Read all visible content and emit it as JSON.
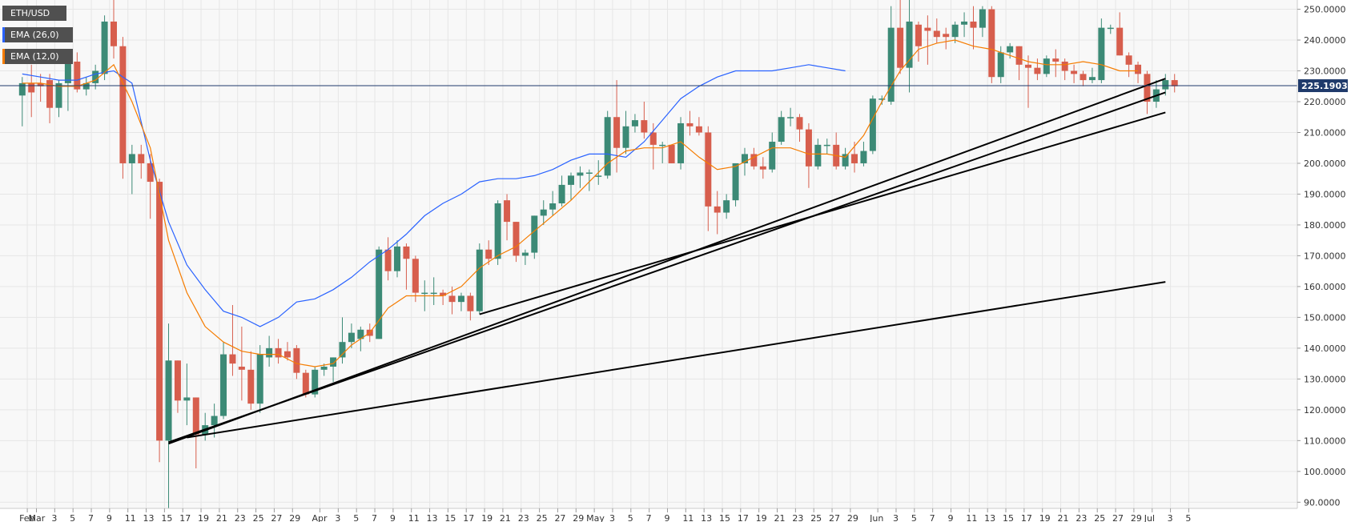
{
  "chart_data": {
    "type": "candlestick",
    "symbol": "ETH/USD",
    "indicators": [
      {
        "name": "EMA (26,0)",
        "color": "#2962ff"
      },
      {
        "name": "EMA (12,0)",
        "color": "#f57c00"
      }
    ],
    "current_price_label": "225.19035",
    "current_price": 225.19,
    "ylim": [
      88,
      253
    ],
    "y_ticks": [
      "90.0000",
      "100.0000",
      "110.0000",
      "120.0000",
      "130.0000",
      "140.0000",
      "150.0000",
      "160.0000",
      "170.0000",
      "180.0000",
      "190.0000",
      "200.0000",
      "210.0000",
      "220.0000",
      "230.0000",
      "240.0000",
      "250.0000"
    ],
    "x_ticks": [
      "Feb",
      "Mar",
      "3",
      "5",
      "7",
      "9",
      "11",
      "13",
      "15",
      "17",
      "19",
      "21",
      "23",
      "25",
      "27",
      "29",
      "Apr",
      "3",
      "5",
      "7",
      "9",
      "11",
      "13",
      "15",
      "17",
      "19",
      "21",
      "23",
      "25",
      "27",
      "29",
      "May",
      "3",
      "5",
      "7",
      "9",
      "11",
      "13",
      "15",
      "17",
      "19",
      "21",
      "23",
      "25",
      "27",
      "29",
      "Jun",
      "3",
      "5",
      "7",
      "9",
      "11",
      "13",
      "15",
      "17",
      "19",
      "21",
      "23",
      "25",
      "27",
      "29",
      "Jul",
      "3",
      "5"
    ],
    "x_tick_days": [
      -1,
      0,
      2,
      4,
      6,
      8,
      10,
      12,
      14,
      16,
      18,
      20,
      22,
      24,
      26,
      28,
      31,
      33,
      35,
      37,
      39,
      41,
      43,
      45,
      47,
      49,
      51,
      53,
      55,
      57,
      59,
      61,
      63,
      65,
      67,
      69,
      71,
      73,
      75,
      77,
      79,
      81,
      83,
      85,
      87,
      89,
      92,
      94,
      96,
      98,
      100,
      102,
      104,
      106,
      108,
      110,
      112,
      114,
      116,
      118,
      120,
      122,
      124,
      126
    ],
    "candles": [
      {
        "o": 222,
        "h": 228,
        "l": 212,
        "c": 226
      },
      {
        "o": 226,
        "h": 232,
        "l": 215,
        "c": 223
      },
      {
        "o": 226,
        "h": 229,
        "l": 220,
        "c": 225
      },
      {
        "o": 227,
        "h": 229,
        "l": 213,
        "c": 218
      },
      {
        "o": 218,
        "h": 227,
        "l": 215,
        "c": 226
      },
      {
        "o": 226,
        "h": 235,
        "l": 217,
        "c": 233
      },
      {
        "o": 233,
        "h": 236,
        "l": 223,
        "c": 224
      },
      {
        "o": 224,
        "h": 228,
        "l": 222,
        "c": 226
      },
      {
        "o": 226,
        "h": 232,
        "l": 224,
        "c": 230
      },
      {
        "o": 229,
        "h": 248,
        "l": 227,
        "c": 246
      },
      {
        "o": 246,
        "h": 253,
        "l": 234,
        "c": 238
      },
      {
        "o": 238,
        "h": 241,
        "l": 195,
        "c": 200
      },
      {
        "o": 200,
        "h": 206,
        "l": 190,
        "c": 203
      },
      {
        "o": 203,
        "h": 206,
        "l": 195,
        "c": 200
      },
      {
        "o": 200,
        "h": 203,
        "l": 182,
        "c": 194
      },
      {
        "o": 194,
        "h": 195,
        "l": 103,
        "c": 110
      },
      {
        "o": 110,
        "h": 148,
        "l": 88,
        "c": 136
      },
      {
        "o": 136,
        "h": 136,
        "l": 119,
        "c": 123
      },
      {
        "o": 123,
        "h": 135,
        "l": 115,
        "c": 124
      },
      {
        "o": 124,
        "h": 124,
        "l": 101,
        "c": 112
      },
      {
        "o": 112,
        "h": 119,
        "l": 110,
        "c": 115
      },
      {
        "o": 115,
        "h": 122,
        "l": 111,
        "c": 118
      },
      {
        "o": 118,
        "h": 142,
        "l": 117,
        "c": 138
      },
      {
        "o": 138,
        "h": 154,
        "l": 131,
        "c": 135
      },
      {
        "o": 134,
        "h": 147,
        "l": 123,
        "c": 133
      },
      {
        "o": 133,
        "h": 139,
        "l": 120,
        "c": 122
      },
      {
        "o": 122,
        "h": 141,
        "l": 119,
        "c": 138
      },
      {
        "o": 137,
        "h": 144,
        "l": 134,
        "c": 140
      },
      {
        "o": 140,
        "h": 143,
        "l": 135,
        "c": 137
      },
      {
        "o": 139,
        "h": 142,
        "l": 136,
        "c": 137
      },
      {
        "o": 140,
        "h": 141,
        "l": 130,
        "c": 132
      },
      {
        "o": 132,
        "h": 133,
        "l": 124,
        "c": 125
      },
      {
        "o": 125,
        "h": 134,
        "l": 124,
        "c": 133
      },
      {
        "o": 133,
        "h": 135,
        "l": 131,
        "c": 134
      },
      {
        "o": 134,
        "h": 137,
        "l": 129,
        "c": 137
      },
      {
        "o": 137,
        "h": 150,
        "l": 135,
        "c": 142
      },
      {
        "o": 142,
        "h": 148,
        "l": 140,
        "c": 145
      },
      {
        "o": 143,
        "h": 147,
        "l": 139,
        "c": 146
      },
      {
        "o": 146,
        "h": 148,
        "l": 142,
        "c": 144
      },
      {
        "o": 143,
        "h": 173,
        "l": 143,
        "c": 172
      },
      {
        "o": 172,
        "h": 176,
        "l": 162,
        "c": 165
      },
      {
        "o": 165,
        "h": 175,
        "l": 163,
        "c": 173
      },
      {
        "o": 173,
        "h": 174,
        "l": 159,
        "c": 169
      },
      {
        "o": 169,
        "h": 170,
        "l": 155,
        "c": 158
      },
      {
        "o": 158,
        "h": 162,
        "l": 152,
        "c": 158
      },
      {
        "o": 158,
        "h": 163,
        "l": 154,
        "c": 158
      },
      {
        "o": 158,
        "h": 159,
        "l": 154,
        "c": 157
      },
      {
        "o": 157,
        "h": 160,
        "l": 151,
        "c": 155
      },
      {
        "o": 155,
        "h": 158,
        "l": 152,
        "c": 157
      },
      {
        "o": 157,
        "h": 158,
        "l": 149,
        "c": 152
      },
      {
        "o": 152,
        "h": 174,
        "l": 151,
        "c": 172
      },
      {
        "o": 172,
        "h": 175,
        "l": 167,
        "c": 169
      },
      {
        "o": 169,
        "h": 188,
        "l": 167,
        "c": 187
      },
      {
        "o": 188,
        "h": 190,
        "l": 175,
        "c": 181
      },
      {
        "o": 181,
        "h": 181,
        "l": 168,
        "c": 170
      },
      {
        "o": 170,
        "h": 172,
        "l": 167,
        "c": 171
      },
      {
        "o": 171,
        "h": 183,
        "l": 169,
        "c": 183
      },
      {
        "o": 183,
        "h": 188,
        "l": 180,
        "c": 185
      },
      {
        "o": 185,
        "h": 191,
        "l": 183,
        "c": 187
      },
      {
        "o": 187,
        "h": 196,
        "l": 186,
        "c": 193
      },
      {
        "o": 193,
        "h": 197,
        "l": 188,
        "c": 196
      },
      {
        "o": 196,
        "h": 199,
        "l": 192,
        "c": 197
      },
      {
        "o": 197,
        "h": 198,
        "l": 191,
        "c": 197
      },
      {
        "o": 196,
        "h": 201,
        "l": 193,
        "c": 196
      },
      {
        "o": 196,
        "h": 217,
        "l": 195,
        "c": 215
      },
      {
        "o": 215,
        "h": 227,
        "l": 197,
        "c": 205
      },
      {
        "o": 205,
        "h": 217,
        "l": 203,
        "c": 212
      },
      {
        "o": 212,
        "h": 216,
        "l": 210,
        "c": 214
      },
      {
        "o": 214,
        "h": 220,
        "l": 208,
        "c": 210
      },
      {
        "o": 210,
        "h": 213,
        "l": 198,
        "c": 206
      },
      {
        "o": 206,
        "h": 207,
        "l": 200,
        "c": 206
      },
      {
        "o": 206,
        "h": 206,
        "l": 200,
        "c": 200
      },
      {
        "o": 200,
        "h": 215,
        "l": 198,
        "c": 213
      },
      {
        "o": 213,
        "h": 217,
        "l": 209,
        "c": 212
      },
      {
        "o": 212,
        "h": 215,
        "l": 209,
        "c": 210
      },
      {
        "o": 210,
        "h": 212,
        "l": 178,
        "c": 186
      },
      {
        "o": 186,
        "h": 191,
        "l": 177,
        "c": 184
      },
      {
        "o": 184,
        "h": 190,
        "l": 182,
        "c": 188
      },
      {
        "o": 188,
        "h": 200,
        "l": 186,
        "c": 200
      },
      {
        "o": 200,
        "h": 205,
        "l": 196,
        "c": 203
      },
      {
        "o": 203,
        "h": 205,
        "l": 198,
        "c": 199
      },
      {
        "o": 199,
        "h": 202,
        "l": 195,
        "c": 198
      },
      {
        "o": 198,
        "h": 210,
        "l": 197,
        "c": 207
      },
      {
        "o": 207,
        "h": 217,
        "l": 206,
        "c": 215
      },
      {
        "o": 215,
        "h": 218,
        "l": 212,
        "c": 215
      },
      {
        "o": 215,
        "h": 216,
        "l": 207,
        "c": 211
      },
      {
        "o": 211,
        "h": 213,
        "l": 192,
        "c": 199
      },
      {
        "o": 199,
        "h": 208,
        "l": 198,
        "c": 206
      },
      {
        "o": 206,
        "h": 208,
        "l": 203,
        "c": 206
      },
      {
        "o": 206,
        "h": 210,
        "l": 198,
        "c": 199
      },
      {
        "o": 199,
        "h": 205,
        "l": 198,
        "c": 203
      },
      {
        "o": 203,
        "h": 207,
        "l": 197,
        "c": 200
      },
      {
        "o": 200,
        "h": 207,
        "l": 199,
        "c": 204
      },
      {
        "o": 204,
        "h": 222,
        "l": 203,
        "c": 221
      },
      {
        "o": 221,
        "h": 222,
        "l": 219,
        "c": 221
      },
      {
        "o": 220,
        "h": 251,
        "l": 219,
        "c": 244
      },
      {
        "o": 244,
        "h": 253,
        "l": 229,
        "c": 231
      },
      {
        "o": 231,
        "h": 253,
        "l": 223,
        "c": 246
      },
      {
        "o": 245,
        "h": 246,
        "l": 233,
        "c": 238
      },
      {
        "o": 244,
        "h": 248,
        "l": 232,
        "c": 243
      },
      {
        "o": 243,
        "h": 247,
        "l": 239,
        "c": 241
      },
      {
        "o": 242,
        "h": 244,
        "l": 237,
        "c": 241
      },
      {
        "o": 241,
        "h": 246,
        "l": 239,
        "c": 245
      },
      {
        "o": 245,
        "h": 249,
        "l": 241,
        "c": 246
      },
      {
        "o": 246,
        "h": 251,
        "l": 237,
        "c": 244
      },
      {
        "o": 244,
        "h": 251,
        "l": 241,
        "c": 250
      },
      {
        "o": 250,
        "h": 251,
        "l": 226,
        "c": 228
      },
      {
        "o": 228,
        "h": 238,
        "l": 226,
        "c": 236
      },
      {
        "o": 236,
        "h": 239,
        "l": 234,
        "c": 238
      },
      {
        "o": 238,
        "h": 238,
        "l": 227,
        "c": 232
      },
      {
        "o": 232,
        "h": 235,
        "l": 218,
        "c": 231
      },
      {
        "o": 231,
        "h": 234,
        "l": 227,
        "c": 229
      },
      {
        "o": 229,
        "h": 235,
        "l": 228,
        "c": 234
      },
      {
        "o": 234,
        "h": 237,
        "l": 228,
        "c": 233
      },
      {
        "o": 233,
        "h": 234,
        "l": 227,
        "c": 230
      },
      {
        "o": 230,
        "h": 232,
        "l": 226,
        "c": 229
      },
      {
        "o": 229,
        "h": 230,
        "l": 225,
        "c": 227
      },
      {
        "o": 227,
        "h": 231,
        "l": 226,
        "c": 228
      },
      {
        "o": 227,
        "h": 247,
        "l": 226,
        "c": 244
      },
      {
        "o": 244,
        "h": 245,
        "l": 242,
        "c": 244
      },
      {
        "o": 244,
        "h": 249,
        "l": 235,
        "c": 235
      },
      {
        "o": 235,
        "h": 236,
        "l": 228,
        "c": 232
      },
      {
        "o": 232,
        "h": 233,
        "l": 226,
        "c": 229
      },
      {
        "o": 229,
        "h": 230,
        "l": 216,
        "c": 220
      },
      {
        "o": 220,
        "h": 227,
        "l": 218,
        "c": 224
      },
      {
        "o": 224,
        "h": 229,
        "l": 222,
        "c": 227
      },
      {
        "o": 227,
        "h": 229,
        "l": 223,
        "c": 225
      }
    ],
    "ema12": [
      [
        0,
        226
      ],
      [
        2,
        226
      ],
      [
        4,
        225
      ],
      [
        6,
        225
      ],
      [
        8,
        227
      ],
      [
        10,
        232
      ],
      [
        12,
        220
      ],
      [
        14,
        205
      ],
      [
        16,
        175
      ],
      [
        18,
        158
      ],
      [
        20,
        147
      ],
      [
        22,
        142
      ],
      [
        24,
        139
      ],
      [
        26,
        138
      ],
      [
        28,
        138
      ],
      [
        30,
        135
      ],
      [
        32,
        134
      ],
      [
        34,
        135
      ],
      [
        36,
        141
      ],
      [
        38,
        145
      ],
      [
        40,
        153
      ],
      [
        42,
        157
      ],
      [
        44,
        157
      ],
      [
        46,
        157
      ],
      [
        48,
        160
      ],
      [
        50,
        166
      ],
      [
        52,
        170
      ],
      [
        54,
        173
      ],
      [
        56,
        178
      ],
      [
        58,
        183
      ],
      [
        60,
        188
      ],
      [
        62,
        194
      ],
      [
        64,
        200
      ],
      [
        66,
        204
      ],
      [
        68,
        205
      ],
      [
        70,
        205
      ],
      [
        72,
        207
      ],
      [
        74,
        202
      ],
      [
        76,
        198
      ],
      [
        78,
        199
      ],
      [
        80,
        202
      ],
      [
        82,
        205
      ],
      [
        84,
        205
      ],
      [
        86,
        203
      ],
      [
        88,
        203
      ],
      [
        90,
        202
      ],
      [
        92,
        209
      ],
      [
        94,
        220
      ],
      [
        96,
        230
      ],
      [
        98,
        237
      ],
      [
        100,
        239
      ],
      [
        102,
        240
      ],
      [
        104,
        238
      ],
      [
        106,
        237
      ],
      [
        108,
        235
      ],
      [
        110,
        233
      ],
      [
        112,
        232
      ],
      [
        114,
        232
      ],
      [
        116,
        233
      ],
      [
        118,
        232
      ],
      [
        120,
        230
      ],
      [
        122,
        230
      ]
    ],
    "ema26": [
      [
        0,
        229
      ],
      [
        2,
        228
      ],
      [
        4,
        227
      ],
      [
        6,
        227
      ],
      [
        8,
        229
      ],
      [
        10,
        230
      ],
      [
        12,
        226
      ],
      [
        14,
        201
      ],
      [
        16,
        181
      ],
      [
        18,
        167
      ],
      [
        20,
        159
      ],
      [
        22,
        152
      ],
      [
        24,
        150
      ],
      [
        26,
        147
      ],
      [
        28,
        150
      ],
      [
        30,
        155
      ],
      [
        32,
        156
      ],
      [
        34,
        159
      ],
      [
        36,
        163
      ],
      [
        38,
        168
      ],
      [
        40,
        172
      ],
      [
        42,
        177
      ],
      [
        44,
        183
      ],
      [
        46,
        187
      ],
      [
        48,
        190
      ],
      [
        50,
        194
      ],
      [
        52,
        195
      ],
      [
        54,
        195
      ],
      [
        56,
        196
      ],
      [
        58,
        198
      ],
      [
        60,
        201
      ],
      [
        62,
        203
      ],
      [
        64,
        203
      ],
      [
        66,
        202
      ],
      [
        68,
        207
      ],
      [
        70,
        214
      ],
      [
        72,
        221
      ],
      [
        74,
        225
      ],
      [
        76,
        228
      ],
      [
        78,
        230
      ],
      [
        80,
        230
      ],
      [
        82,
        230
      ],
      [
        84,
        231
      ],
      [
        86,
        232
      ],
      [
        88,
        231
      ],
      [
        90,
        230
      ]
    ],
    "trendlines": [
      {
        "from": [
          16,
          109
        ],
        "to": [
          125,
          227.5
        ]
      },
      {
        "from": [
          50,
          151
        ],
        "to": [
          125,
          216.5
        ]
      },
      {
        "from": [
          18,
          111
        ],
        "to": [
          125,
          161.5
        ]
      },
      {
        "from": [
          16,
          109.5
        ],
        "to": [
          125,
          223
        ]
      }
    ]
  }
}
